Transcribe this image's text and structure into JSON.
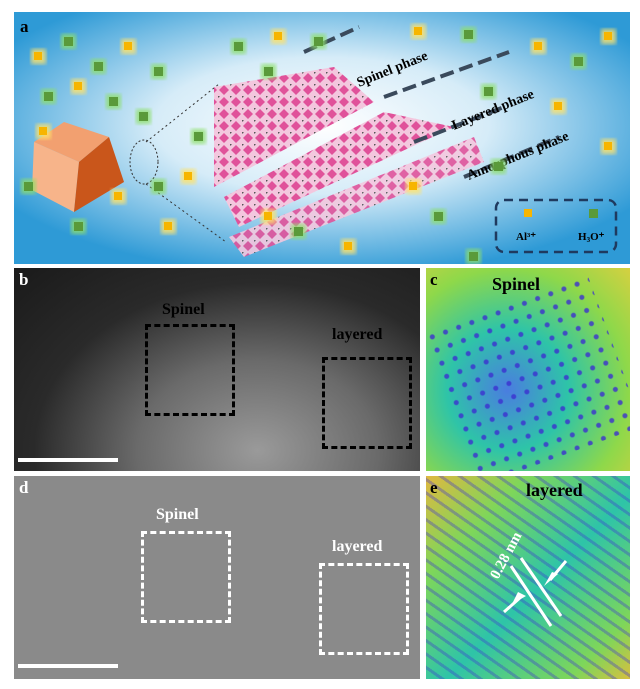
{
  "panels": {
    "a": {
      "label": "a",
      "phases": [
        "Spinel phase",
        "Layered phase",
        "Amorphous phase"
      ],
      "legend": {
        "al": "Al³⁺",
        "h3o_main": "H",
        "h3o_sub": "3",
        "h3o_tail": "O⁺"
      }
    },
    "b": {
      "label": "b",
      "box1": "Spinel",
      "box2": "layered"
    },
    "c": {
      "label": "c",
      "title": "Spinel"
    },
    "d": {
      "label": "d",
      "box1": "Spinel",
      "box2": "layered"
    },
    "e": {
      "label": "e",
      "title": "layered",
      "spacing": "0.28 nm"
    }
  },
  "colors": {
    "al_ion": "#f7b500",
    "h3o_ion": "#5a9a3a",
    "lattice": "#e0529a",
    "cube": "#d9692a"
  }
}
